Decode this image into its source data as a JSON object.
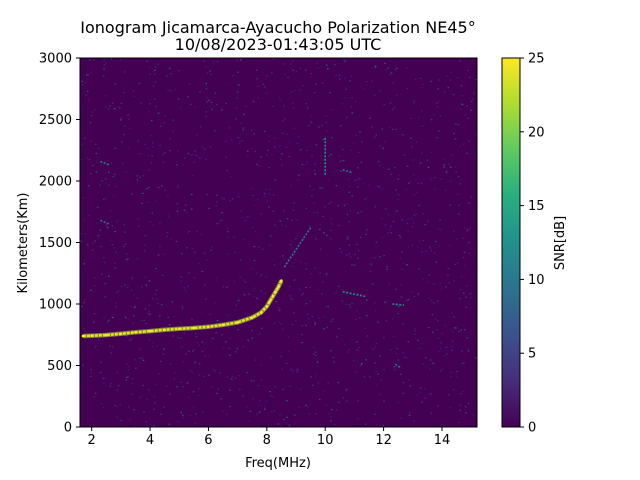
{
  "chart_data": {
    "type": "heatmap",
    "title": "Ionogram Jicamarca-Ayacucho Polarization NE45°",
    "subtitle": "10/08/2023-01:43:05 UTC",
    "xlabel": "Freq(MHz)",
    "ylabel": "Kilometers(Km)",
    "xlim": [
      1.6,
      15.2
    ],
    "ylim": [
      0,
      3000
    ],
    "x_ticks": [
      2,
      4,
      6,
      8,
      10,
      12,
      14
    ],
    "y_ticks": [
      0,
      500,
      1000,
      1500,
      2000,
      2500,
      3000
    ],
    "grid": false,
    "colorbar": {
      "label": "SNR[dB]",
      "range": [
        0,
        25
      ],
      "ticks": [
        0,
        5,
        10,
        15,
        20,
        25
      ],
      "colormap": "viridis"
    },
    "background_snr_db": 1,
    "echo_trace": {
      "name": "main echo trace",
      "snr_db": 24,
      "freq_mhz": [
        1.7,
        2.0,
        2.5,
        3.0,
        3.5,
        4.0,
        4.5,
        5.0,
        5.5,
        6.0,
        6.5,
        7.0,
        7.5,
        7.8,
        8.0,
        8.1,
        8.2,
        8.3,
        8.4,
        8.5
      ],
      "height_km": [
        740,
        742,
        748,
        758,
        770,
        780,
        790,
        798,
        805,
        815,
        830,
        850,
        890,
        930,
        980,
        1020,
        1060,
        1100,
        1140,
        1190
      ]
    },
    "weak_echoes": [
      {
        "name": "secondary trace 1",
        "snr_db": 10,
        "freq_mhz": [
          8.6,
          9.5
        ],
        "height_km": [
          1300,
          1620
        ]
      },
      {
        "name": "oblique trace 1",
        "snr_db": 12,
        "freq_mhz": [
          10.6,
          11.4
        ],
        "height_km": [
          1100,
          1060
        ]
      },
      {
        "name": "oblique trace 2",
        "snr_db": 12,
        "freq_mhz": [
          12.3,
          12.7
        ],
        "height_km": [
          1000,
          990
        ]
      },
      {
        "name": "oblique trace 3",
        "snr_db": 10,
        "freq_mhz": [
          10.6,
          10.9
        ],
        "height_km": [
          2090,
          2070
        ]
      },
      {
        "name": "oblique trace 4",
        "snr_db": 10,
        "freq_mhz": [
          12.4,
          12.6
        ],
        "height_km": [
          510,
          480
        ]
      },
      {
        "name": "oblique trace 5",
        "snr_db": 10,
        "freq_mhz": [
          2.3,
          2.6
        ],
        "height_km": [
          2160,
          2130
        ]
      },
      {
        "name": "oblique trace 6",
        "snr_db": 9,
        "freq_mhz": [
          2.3,
          2.6
        ],
        "height_km": [
          1680,
          1650
        ]
      },
      {
        "name": "vertical interference",
        "snr_db": 12,
        "freq_mhz": [
          10.0,
          10.0
        ],
        "height_km": [
          2050,
          2350
        ]
      }
    ]
  }
}
